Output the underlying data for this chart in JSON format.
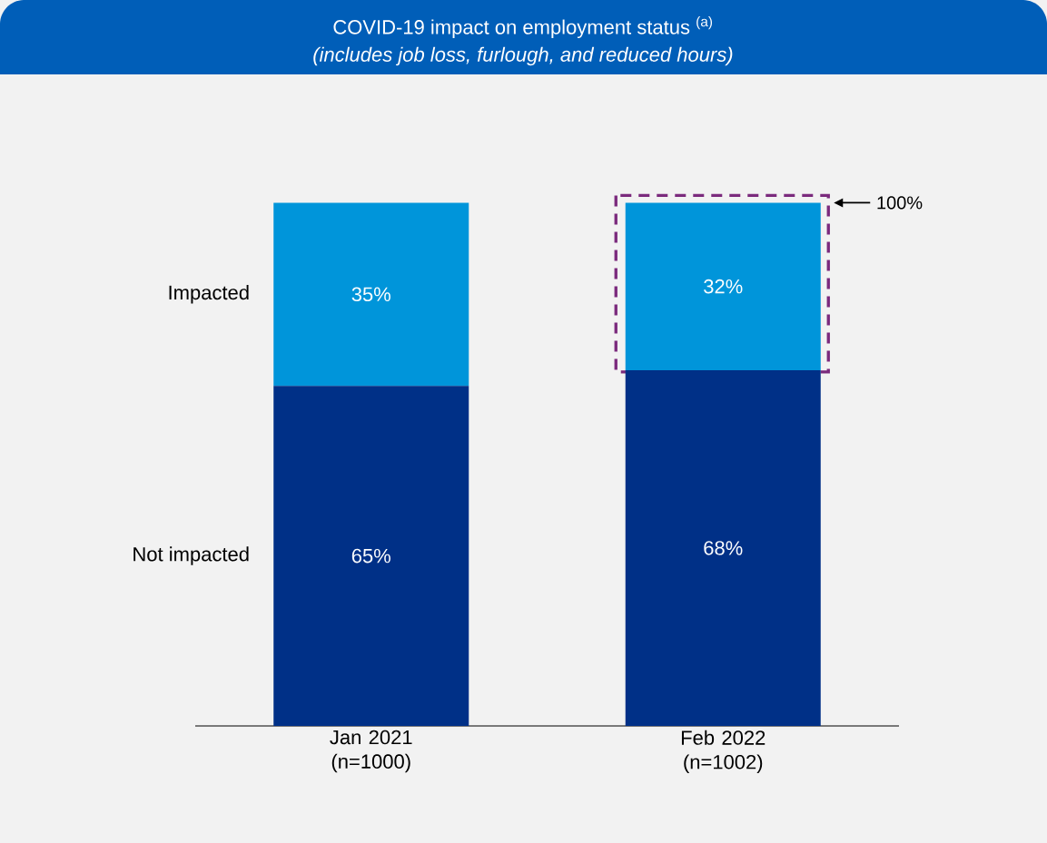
{
  "chart_data": {
    "type": "bar",
    "title": "COVID-19 impact on employment status $^{(a)}$",
    "subtitle": "(includes job loss, furlough, and reduced hours)",
    "categories": [
      "Jan 2021 (n=1000)",
      "Feb 2022 (n=1002)"
    ],
    "stacked": true,
    "series": [
      {
        "name": "Not impacted",
        "color": "#003087",
        "values": [
          65,
          68
        ],
        "value_labels": [
          "65%",
          "68%"
        ]
      },
      {
        "name": "Impacted",
        "color": "#0095da",
        "values": [
          35,
          32
        ],
        "value_labels": [
          "35%",
          "32%"
        ]
      }
    ],
    "annotations": [
      "100%"
    ]
  }
}
